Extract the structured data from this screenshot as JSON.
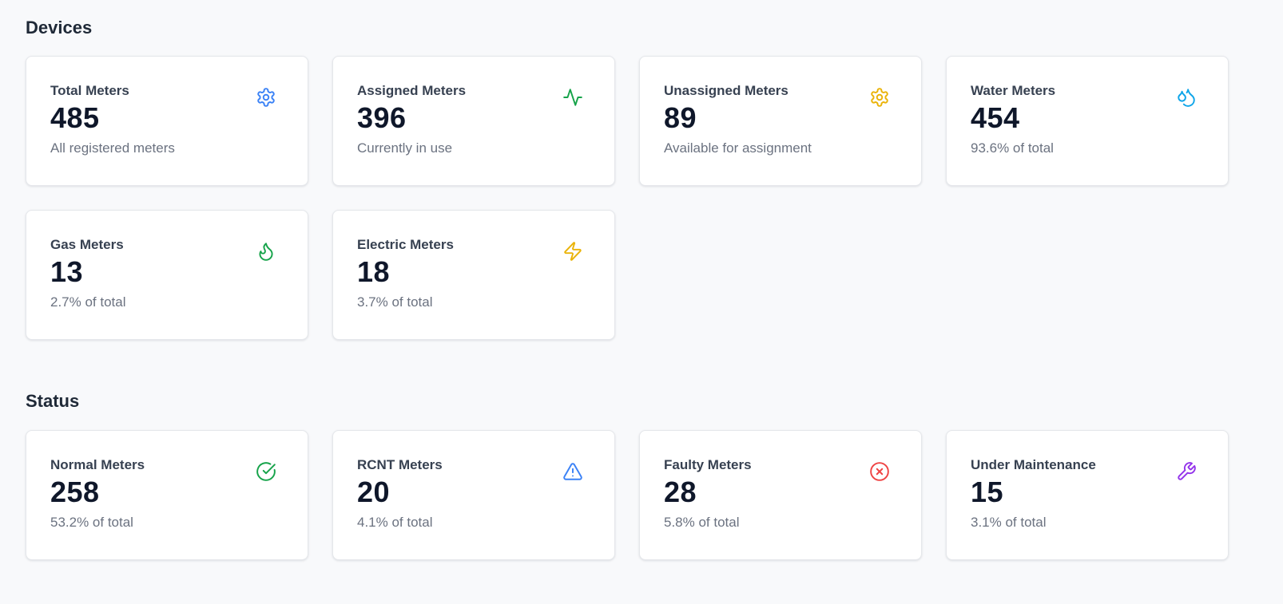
{
  "sections": {
    "devices": {
      "title": "Devices",
      "cards": [
        {
          "label": "Total Meters",
          "value": "485",
          "sub": "All registered meters",
          "icon": "gear-icon",
          "color": "#3b82f6"
        },
        {
          "label": "Assigned Meters",
          "value": "396",
          "sub": "Currently in use",
          "icon": "activity-icon",
          "color": "#16a34a"
        },
        {
          "label": "Unassigned Meters",
          "value": "89",
          "sub": "Available for assignment",
          "icon": "gear-icon",
          "color": "#eab308"
        },
        {
          "label": "Water Meters",
          "value": "454",
          "sub": "93.6% of total",
          "icon": "droplets-icon",
          "color": "#0ea5e9"
        },
        {
          "label": "Gas Meters",
          "value": "13",
          "sub": "2.7% of total",
          "icon": "flame-icon",
          "color": "#16a34a"
        },
        {
          "label": "Electric Meters",
          "value": "18",
          "sub": "3.7% of total",
          "icon": "lightning-icon",
          "color": "#eab308"
        }
      ]
    },
    "status": {
      "title": "Status",
      "cards": [
        {
          "label": "Normal Meters",
          "value": "258",
          "sub": "53.2% of total",
          "icon": "check-circle-icon",
          "color": "#16a34a"
        },
        {
          "label": "RCNT Meters",
          "value": "20",
          "sub": "4.1% of total",
          "icon": "warning-triangle-icon",
          "color": "#3b82f6"
        },
        {
          "label": "Faulty Meters",
          "value": "28",
          "sub": "5.8% of total",
          "icon": "x-circle-icon",
          "color": "#ef4444"
        },
        {
          "label": "Under Maintenance",
          "value": "15",
          "sub": "3.1% of total",
          "icon": "wrench-icon",
          "color": "#9333ea"
        }
      ]
    }
  }
}
